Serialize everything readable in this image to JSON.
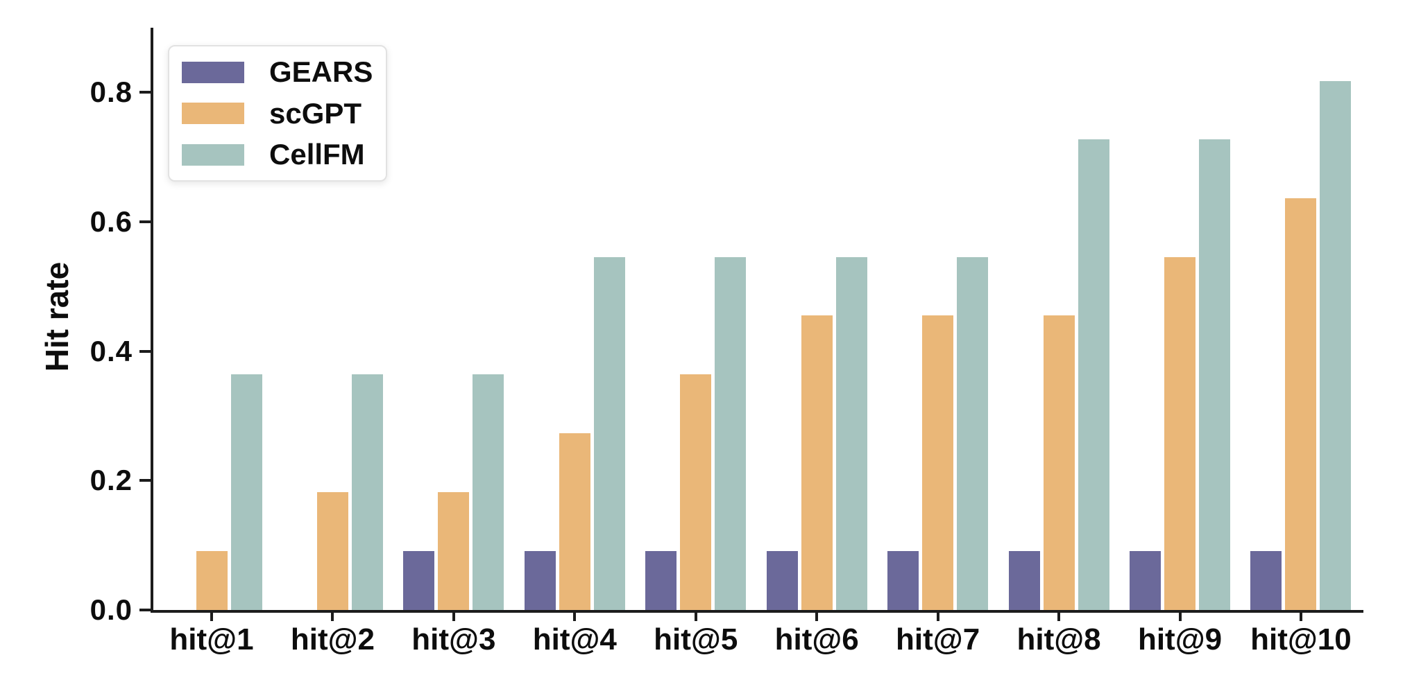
{
  "figure": {
    "background_color": "#ffffff",
    "axis_color": "#1c1c1c",
    "text_color": "#0d0d0d"
  },
  "chart_data": {
    "type": "bar",
    "title": "",
    "xlabel": "",
    "ylabel": "Hit rate",
    "categories": [
      "hit@1",
      "hit@2",
      "hit@3",
      "hit@4",
      "hit@5",
      "hit@6",
      "hit@7",
      "hit@8",
      "hit@9",
      "hit@10"
    ],
    "series": [
      {
        "name": "GEARS",
        "color": "#6b699a",
        "values": [
          0,
          0,
          0.091,
          0.091,
          0.091,
          0.091,
          0.091,
          0.091,
          0.091,
          0.091
        ]
      },
      {
        "name": "scGPT",
        "color": "#eab778",
        "values": [
          0.091,
          0.182,
          0.182,
          0.273,
          0.364,
          0.455,
          0.455,
          0.455,
          0.545,
          0.636
        ]
      },
      {
        "name": "CellFM",
        "color": "#a6c4bf",
        "values": [
          0.364,
          0.364,
          0.364,
          0.545,
          0.545,
          0.545,
          0.545,
          0.727,
          0.727,
          0.818
        ]
      }
    ],
    "ylim": [
      0,
      0.9
    ],
    "ytick_values": [
      0.0,
      0.2,
      0.4,
      0.6,
      0.8
    ],
    "ytick_labels": [
      "0.0",
      "0.2",
      "0.4",
      "0.6",
      "0.8"
    ],
    "grid": false,
    "legend_position": "upper-left"
  }
}
